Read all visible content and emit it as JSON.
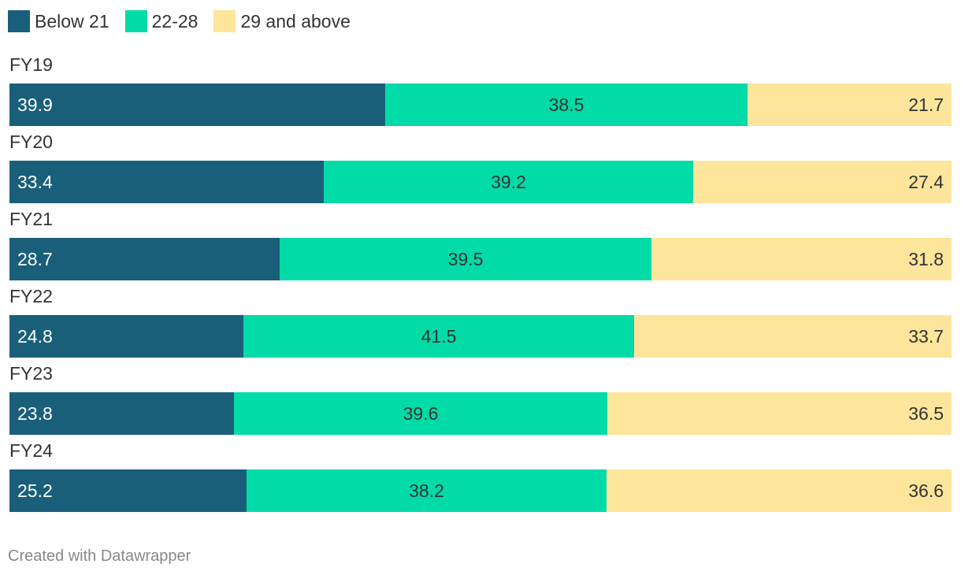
{
  "chart_data": {
    "type": "bar",
    "orientation": "horizontal",
    "stacked": true,
    "categories": [
      "FY19",
      "FY20",
      "FY21",
      "FY22",
      "FY23",
      "FY24"
    ],
    "series": [
      {
        "name": "Below 21",
        "color": "#1a5f7a",
        "values": [
          39.9,
          33.4,
          28.7,
          24.8,
          23.8,
          25.2
        ]
      },
      {
        "name": "22-28",
        "color": "#00dba8",
        "values": [
          38.5,
          39.2,
          39.5,
          41.5,
          39.6,
          38.2
        ]
      },
      {
        "name": "29 and above",
        "color": "#fde59c",
        "values": [
          21.7,
          27.4,
          31.8,
          33.7,
          36.5,
          36.6
        ]
      }
    ],
    "legend_placement": "top-left",
    "grid": false
  },
  "footer": {
    "credit": "Created with Datawrapper"
  }
}
